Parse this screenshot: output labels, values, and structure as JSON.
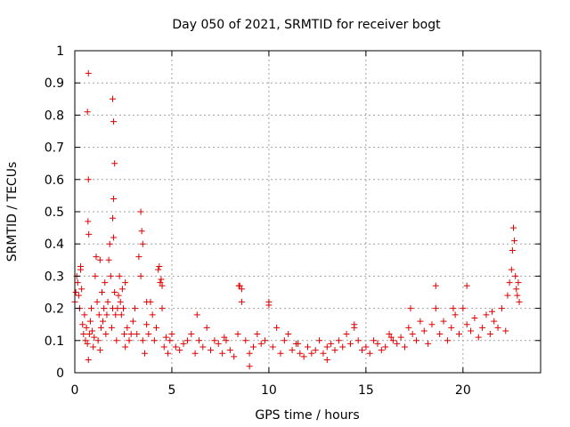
{
  "chart_data": {
    "type": "scatter",
    "title": "Day 050 of 2021, SRMTID for receiver bogt",
    "xlabel": "GPS time / hours",
    "ylabel": "SRMTID / TECUs",
    "xlim": [
      0,
      24
    ],
    "ylim": [
      0,
      1
    ],
    "xticks": [
      0,
      5,
      10,
      15,
      20
    ],
    "xtick_labels": [
      "0",
      "5",
      "10",
      "15",
      "20"
    ],
    "yticks": [
      0,
      0.1,
      0.2,
      0.3,
      0.4,
      0.5,
      0.6,
      0.7,
      0.8,
      0.9,
      1
    ],
    "ytick_labels": [
      "0",
      "0.1",
      "0.2",
      "0.3",
      "0.4",
      "0.5",
      "0.6",
      "0.7",
      "0.8",
      "0.9",
      "1"
    ],
    "grid": true,
    "marker": "+",
    "color": "#e00000",
    "series": [
      {
        "name": "SRMTID",
        "x": [
          0.0,
          0.05,
          0.1,
          0.15,
          0.2,
          0.25,
          0.3,
          0.35,
          0.4,
          0.45,
          0.5,
          0.55,
          0.6,
          0.65,
          0.7,
          0.75,
          0.8,
          0.85,
          0.9,
          0.95,
          1.0,
          1.05,
          1.1,
          1.15,
          1.2,
          1.25,
          1.3,
          1.35,
          1.4,
          1.45,
          1.5,
          1.55,
          1.6,
          1.65,
          1.7,
          1.75,
          1.8,
          1.85,
          1.9,
          1.95,
          2.0,
          2.05,
          2.1,
          2.15,
          2.2,
          2.25,
          2.3,
          2.35,
          2.4,
          2.45,
          2.5,
          2.55,
          2.6,
          2.7,
          2.8,
          2.9,
          3.0,
          3.1,
          3.2,
          3.3,
          3.4,
          3.5,
          3.6,
          3.7,
          3.8,
          3.9,
          4.0,
          4.1,
          4.2,
          4.3,
          4.4,
          4.5,
          4.6,
          4.7,
          4.8,
          4.9,
          5.0,
          5.2,
          5.4,
          5.6,
          5.8,
          6.0,
          6.2,
          6.4,
          6.6,
          6.8,
          7.0,
          7.2,
          7.4,
          7.6,
          7.8,
          8.0,
          8.2,
          8.4,
          8.5,
          8.6,
          8.8,
          9.0,
          9.2,
          9.4,
          9.6,
          9.8,
          10.0,
          10.2,
          10.4,
          10.6,
          10.8,
          11.0,
          11.2,
          11.4,
          11.6,
          11.8,
          12.0,
          12.2,
          12.4,
          12.6,
          12.8,
          13.0,
          13.2,
          13.4,
          13.6,
          13.8,
          14.0,
          14.2,
          14.4,
          14.6,
          14.8,
          15.0,
          15.2,
          15.4,
          15.6,
          15.8,
          16.0,
          16.2,
          16.4,
          16.6,
          16.8,
          17.0,
          17.2,
          17.4,
          17.6,
          17.8,
          18.0,
          18.2,
          18.4,
          18.6,
          18.8,
          19.0,
          19.2,
          19.4,
          19.6,
          19.8,
          20.0,
          20.2,
          20.4,
          20.6,
          20.8,
          21.0,
          21.2,
          21.4,
          21.6,
          21.8,
          22.0,
          22.2,
          22.3,
          22.4,
          22.5,
          22.55,
          22.6,
          22.65,
          22.7,
          22.75,
          22.8,
          22.85,
          22.9,
          0.7,
          0.65,
          0.7,
          0.68,
          0.72,
          1.95,
          2.0,
          2.05,
          2.0,
          1.95,
          3.4,
          3.45,
          3.5,
          4.35,
          4.45,
          8.45,
          8.6,
          10.0,
          0.3,
          1.3,
          2.6,
          3.7,
          4.5,
          6.3,
          7.7,
          9.0,
          11.5,
          13.0,
          14.4,
          16.3,
          17.3,
          18.6,
          19.5,
          20.2,
          21.5
        ],
        "y": [
          0.22,
          0.25,
          0.3,
          0.28,
          0.24,
          0.2,
          0.32,
          0.26,
          0.15,
          0.12,
          0.18,
          0.1,
          0.14,
          0.09,
          0.04,
          0.12,
          0.16,
          0.2,
          0.13,
          0.08,
          0.11,
          0.3,
          0.36,
          0.22,
          0.1,
          0.18,
          0.07,
          0.14,
          0.25,
          0.16,
          0.2,
          0.28,
          0.12,
          0.18,
          0.22,
          0.35,
          0.4,
          0.3,
          0.14,
          0.2,
          0.42,
          0.25,
          0.18,
          0.1,
          0.2,
          0.24,
          0.3,
          0.22,
          0.18,
          0.26,
          0.2,
          0.12,
          0.08,
          0.14,
          0.1,
          0.12,
          0.16,
          0.2,
          0.12,
          0.36,
          0.3,
          0.1,
          0.06,
          0.15,
          0.12,
          0.22,
          0.18,
          0.1,
          0.14,
          0.32,
          0.28,
          0.2,
          0.08,
          0.11,
          0.06,
          0.1,
          0.12,
          0.08,
          0.07,
          0.09,
          0.1,
          0.12,
          0.06,
          0.1,
          0.08,
          0.14,
          0.07,
          0.1,
          0.09,
          0.06,
          0.1,
          0.07,
          0.05,
          0.12,
          0.27,
          0.26,
          0.1,
          0.06,
          0.08,
          0.12,
          0.09,
          0.1,
          0.22,
          0.08,
          0.14,
          0.06,
          0.1,
          0.12,
          0.07,
          0.09,
          0.06,
          0.05,
          0.08,
          0.06,
          0.07,
          0.1,
          0.06,
          0.08,
          0.09,
          0.07,
          0.1,
          0.08,
          0.12,
          0.09,
          0.14,
          0.1,
          0.07,
          0.08,
          0.06,
          0.1,
          0.09,
          0.07,
          0.08,
          0.12,
          0.1,
          0.09,
          0.11,
          0.08,
          0.14,
          0.12,
          0.1,
          0.16,
          0.13,
          0.09,
          0.15,
          0.2,
          0.12,
          0.16,
          0.1,
          0.14,
          0.18,
          0.12,
          0.2,
          0.15,
          0.13,
          0.17,
          0.11,
          0.14,
          0.18,
          0.12,
          0.16,
          0.14,
          0.2,
          0.13,
          0.24,
          0.28,
          0.32,
          0.38,
          0.45,
          0.41,
          0.3,
          0.26,
          0.24,
          0.28,
          0.22,
          0.93,
          0.81,
          0.6,
          0.47,
          0.43,
          0.85,
          0.78,
          0.65,
          0.54,
          0.48,
          0.5,
          0.44,
          0.4,
          0.33,
          0.29,
          0.27,
          0.22,
          0.21,
          0.33,
          0.35,
          0.28,
          0.22,
          0.27,
          0.18,
          0.11,
          0.02,
          0.09,
          0.04,
          0.15,
          0.11,
          0.2,
          0.27,
          0.2,
          0.27,
          0.19
        ]
      }
    ]
  }
}
